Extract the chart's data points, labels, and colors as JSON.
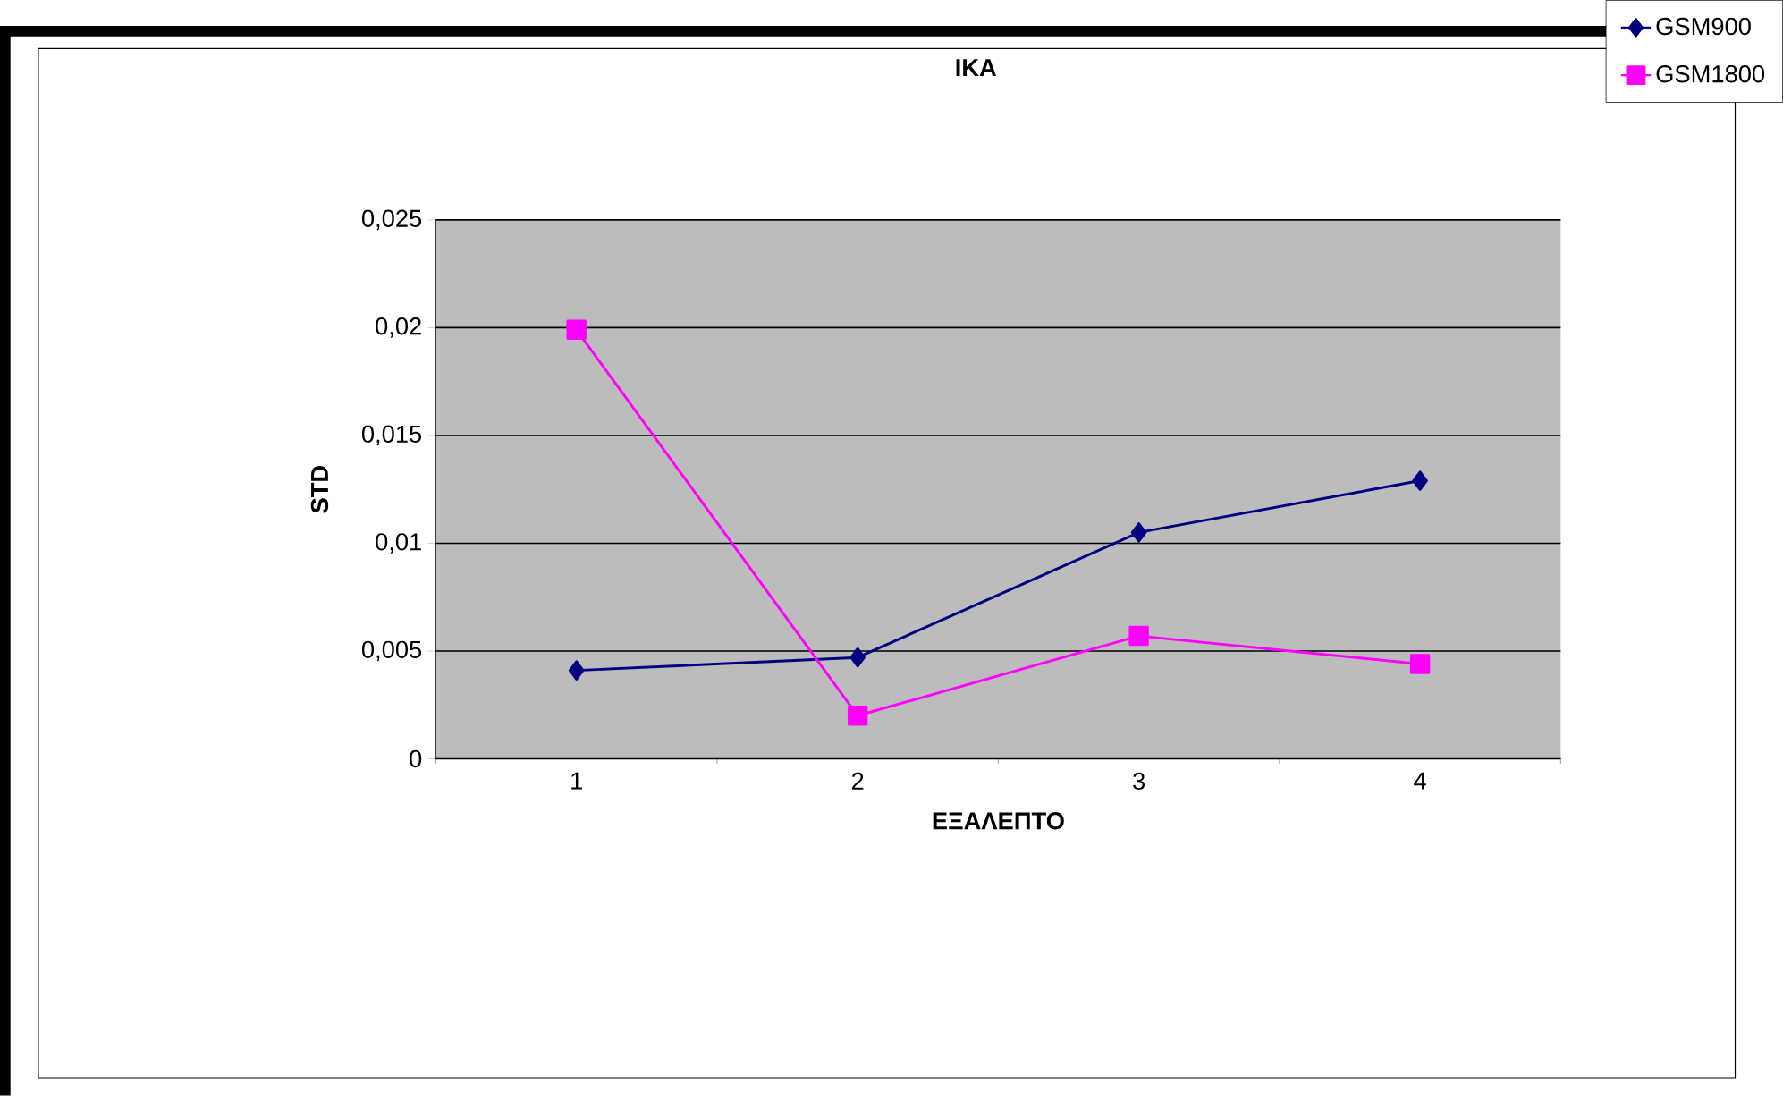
{
  "chart_data": {
    "type": "line",
    "title": "ΙΚΑ",
    "xlabel": "ΕΞΑΛΕΠΤΟ",
    "ylabel": "STD",
    "categories": [
      "1",
      "2",
      "3",
      "4"
    ],
    "series": [
      {
        "name": "GSM900",
        "color": "#000080",
        "marker": "diamond",
        "values": [
          0.0041,
          0.0047,
          0.0105,
          0.0129
        ]
      },
      {
        "name": "GSM1800",
        "color": "#ff00ff",
        "marker": "square",
        "values": [
          0.0199,
          0.002,
          0.0057,
          0.0044
        ]
      }
    ],
    "ylim": [
      0,
      0.025
    ],
    "yticks": [
      {
        "value": 0,
        "label": "0"
      },
      {
        "value": 0.005,
        "label": "0,005"
      },
      {
        "value": 0.01,
        "label": "0,01"
      },
      {
        "value": 0.015,
        "label": "0,015"
      },
      {
        "value": 0.02,
        "label": "0,02"
      },
      {
        "value": 0.025,
        "label": "0,025"
      }
    ],
    "grid": "y",
    "legend": "top right",
    "line_style": "solid"
  }
}
